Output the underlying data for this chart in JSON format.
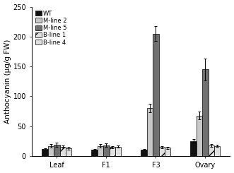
{
  "categories": [
    "Leaf",
    "F1",
    "F3",
    "Ovary"
  ],
  "series": [
    {
      "label": "WT",
      "color": "#111111",
      "hatch": null,
      "values": [
        12,
        11,
        11,
        25
      ],
      "errors": [
        1.5,
        1.5,
        1.5,
        3
      ]
    },
    {
      "label": "M-line 2",
      "color": "#c8c8c8",
      "hatch": null,
      "values": [
        17,
        17,
        80,
        68
      ],
      "errors": [
        3,
        3,
        7,
        7
      ]
    },
    {
      "label": "M-line 5",
      "color": "#707070",
      "hatch": null,
      "values": [
        19,
        18,
        205,
        145
      ],
      "errors": [
        3,
        3,
        12,
        18
      ]
    },
    {
      "label": "B-line 1",
      "color": "#e0e0e0",
      "hatch": "//",
      "values": [
        16,
        15,
        15,
        18
      ],
      "errors": [
        2,
        2,
        2,
        2
      ]
    },
    {
      "label": "B-line 4",
      "color": "#e0e0e0",
      "hatch": "==",
      "values": [
        13,
        16,
        14,
        17
      ],
      "errors": [
        2,
        2,
        2,
        2
      ]
    }
  ],
  "ylabel": "Anthocyanin (μg/g FW)",
  "ylim": [
    0,
    250
  ],
  "yticks": [
    0,
    50,
    100,
    150,
    200,
    250
  ],
  "bar_width": 0.12,
  "background_color": "#ffffff",
  "legend_fontsize": 6.0,
  "axis_fontsize": 7.5,
  "tick_fontsize": 7.0
}
